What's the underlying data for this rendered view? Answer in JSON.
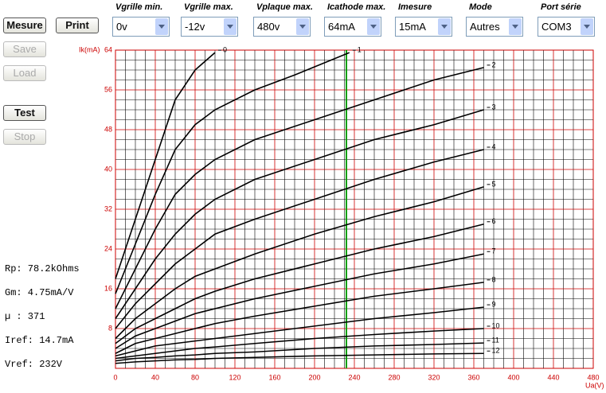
{
  "buttons": {
    "mesure": "Mesure",
    "print": "Print",
    "save": "Save",
    "load": "Load",
    "test": "Test",
    "stop": "Stop"
  },
  "dropdowns": [
    {
      "label": "Vgrille min.",
      "value": "0v"
    },
    {
      "label": "Vgrille max.",
      "value": "-12v"
    },
    {
      "label": "Vplaque max.",
      "value": "480v"
    },
    {
      "label": "Icathode max.",
      "value": "64mA"
    },
    {
      "label": "Imesure",
      "value": "15mA"
    },
    {
      "label": "Mode",
      "value": "Autres"
    },
    {
      "label": "Port série",
      "value": "COM3"
    }
  ],
  "stats": [
    "Rp: 78.2kOhms",
    "Gm: 4.75mA/V",
    "µ : 371",
    "Iref: 14.7mA",
    "Vref: 232V"
  ],
  "chart_data": {
    "type": "line",
    "y_label": "Ik(mA)",
    "x_label": "Ua(V)",
    "xlim": [
      0,
      480
    ],
    "ylim": [
      0,
      64
    ],
    "xticks": [
      0,
      40,
      80,
      120,
      160,
      200,
      240,
      280,
      320,
      360,
      400,
      440,
      480
    ],
    "yticks": [
      8,
      16,
      24,
      32,
      40,
      48,
      56,
      64
    ],
    "grid": true,
    "color": "#000000",
    "grid_color": "#cc0000",
    "marker_x": 232,
    "marker_color": "#00a000",
    "series": [
      {
        "name": "0",
        "x": [
          0,
          20,
          40,
          60,
          80,
          100
        ],
        "values": [
          18,
          30,
          42,
          54,
          60,
          63.5
        ]
      },
      {
        "name": "1",
        "x": [
          0,
          20,
          40,
          60,
          80,
          100,
          140,
          180,
          235
        ],
        "values": [
          15,
          25,
          35,
          44,
          49,
          52,
          56,
          59,
          63.5
        ]
      },
      {
        "name": "2",
        "x": [
          0,
          20,
          40,
          60,
          80,
          100,
          140,
          200,
          260,
          320,
          370
        ],
        "values": [
          12,
          20,
          28,
          35,
          39,
          42,
          46,
          50,
          54,
          58,
          60.5
        ]
      },
      {
        "name": "3",
        "x": [
          0,
          20,
          40,
          60,
          80,
          100,
          140,
          200,
          260,
          320,
          370
        ],
        "values": [
          10,
          16,
          22,
          27,
          31,
          34,
          38,
          42,
          46,
          49,
          52
        ]
      },
      {
        "name": "4",
        "x": [
          0,
          20,
          40,
          60,
          80,
          100,
          140,
          200,
          260,
          320,
          370
        ],
        "values": [
          8,
          13,
          17,
          21,
          24,
          27,
          30,
          34,
          38,
          41.5,
          44
        ]
      },
      {
        "name": "5",
        "x": [
          0,
          20,
          40,
          60,
          80,
          100,
          140,
          200,
          260,
          320,
          370
        ],
        "values": [
          6,
          10,
          13,
          16,
          18.5,
          20,
          23,
          27,
          30.5,
          33.5,
          36.5
        ]
      },
      {
        "name": "6",
        "x": [
          0,
          20,
          40,
          60,
          80,
          100,
          140,
          200,
          260,
          320,
          370
        ],
        "values": [
          5,
          8,
          10,
          12,
          14,
          15.5,
          18,
          21,
          24,
          26.5,
          29
        ]
      },
      {
        "name": "7",
        "x": [
          0,
          20,
          40,
          60,
          80,
          100,
          140,
          200,
          260,
          320,
          370
        ],
        "values": [
          4,
          6.5,
          8,
          9.5,
          11,
          12,
          14,
          16.5,
          19,
          21,
          23
        ]
      },
      {
        "name": "8",
        "x": [
          0,
          20,
          40,
          60,
          80,
          100,
          140,
          200,
          260,
          320,
          370
        ],
        "values": [
          3,
          5,
          6,
          7,
          8,
          9,
          10.5,
          12.5,
          14.5,
          16,
          17.3
        ]
      },
      {
        "name": "9",
        "x": [
          0,
          20,
          40,
          60,
          80,
          100,
          140,
          200,
          260,
          320,
          370
        ],
        "values": [
          2.5,
          3.5,
          4.5,
          5,
          5.5,
          6,
          7,
          8.5,
          10,
          11.2,
          12.3
        ]
      },
      {
        "name": "10",
        "x": [
          0,
          20,
          40,
          60,
          80,
          100,
          140,
          200,
          260,
          320,
          370
        ],
        "values": [
          2,
          2.5,
          3,
          3.5,
          4,
          4.3,
          5,
          6,
          6.8,
          7.5,
          8
        ]
      },
      {
        "name": "11",
        "x": [
          0,
          20,
          40,
          60,
          80,
          100,
          140,
          200,
          260,
          320,
          370
        ],
        "values": [
          1.5,
          2,
          2.2,
          2.5,
          2.7,
          3,
          3.3,
          4,
          4.5,
          4.8,
          5.1
        ]
      },
      {
        "name": "12",
        "x": [
          0,
          20,
          40,
          60,
          80,
          100,
          140,
          200,
          260,
          320,
          370
        ],
        "values": [
          1,
          1.3,
          1.5,
          1.7,
          1.8,
          2,
          2.2,
          2.5,
          2.7,
          2.9,
          3
        ]
      }
    ]
  }
}
